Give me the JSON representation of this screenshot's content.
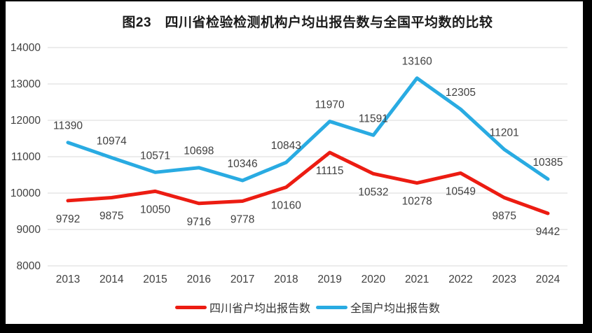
{
  "chart_data": {
    "type": "line",
    "title": "图23　四川省检验检测机构户均出报告数与全国平均数的比较",
    "categories": [
      "2013",
      "2014",
      "2015",
      "2016",
      "2017",
      "2018",
      "2019",
      "2020",
      "2021",
      "2022",
      "2023",
      "2024"
    ],
    "series": [
      {
        "name": "四川省户均出报告数",
        "color": "#ec1c12",
        "values": [
          9792,
          9875,
          10050,
          9716,
          9778,
          10160,
          11115,
          10532,
          10278,
          10549,
          9875,
          9442
        ],
        "label_position": "below"
      },
      {
        "name": "全国户均出报告数",
        "color": "#29abe2",
        "values": [
          11390,
          10974,
          10571,
          10698,
          10346,
          10843,
          11970,
          11591,
          13160,
          12305,
          11201,
          10385
        ],
        "label_position": "above"
      }
    ],
    "ylim": [
      8000,
      14000
    ],
    "yticks": [
      8000,
      9000,
      10000,
      11000,
      12000,
      13000,
      14000
    ],
    "grid": true,
    "legend_position": "bottom"
  },
  "colors": {
    "grid": "#d9d9d9",
    "axis_text": "#404040",
    "data_label_text": "#404040",
    "title_text": "#1a1a1a",
    "frame": "#000000",
    "background": "#ffffff"
  }
}
